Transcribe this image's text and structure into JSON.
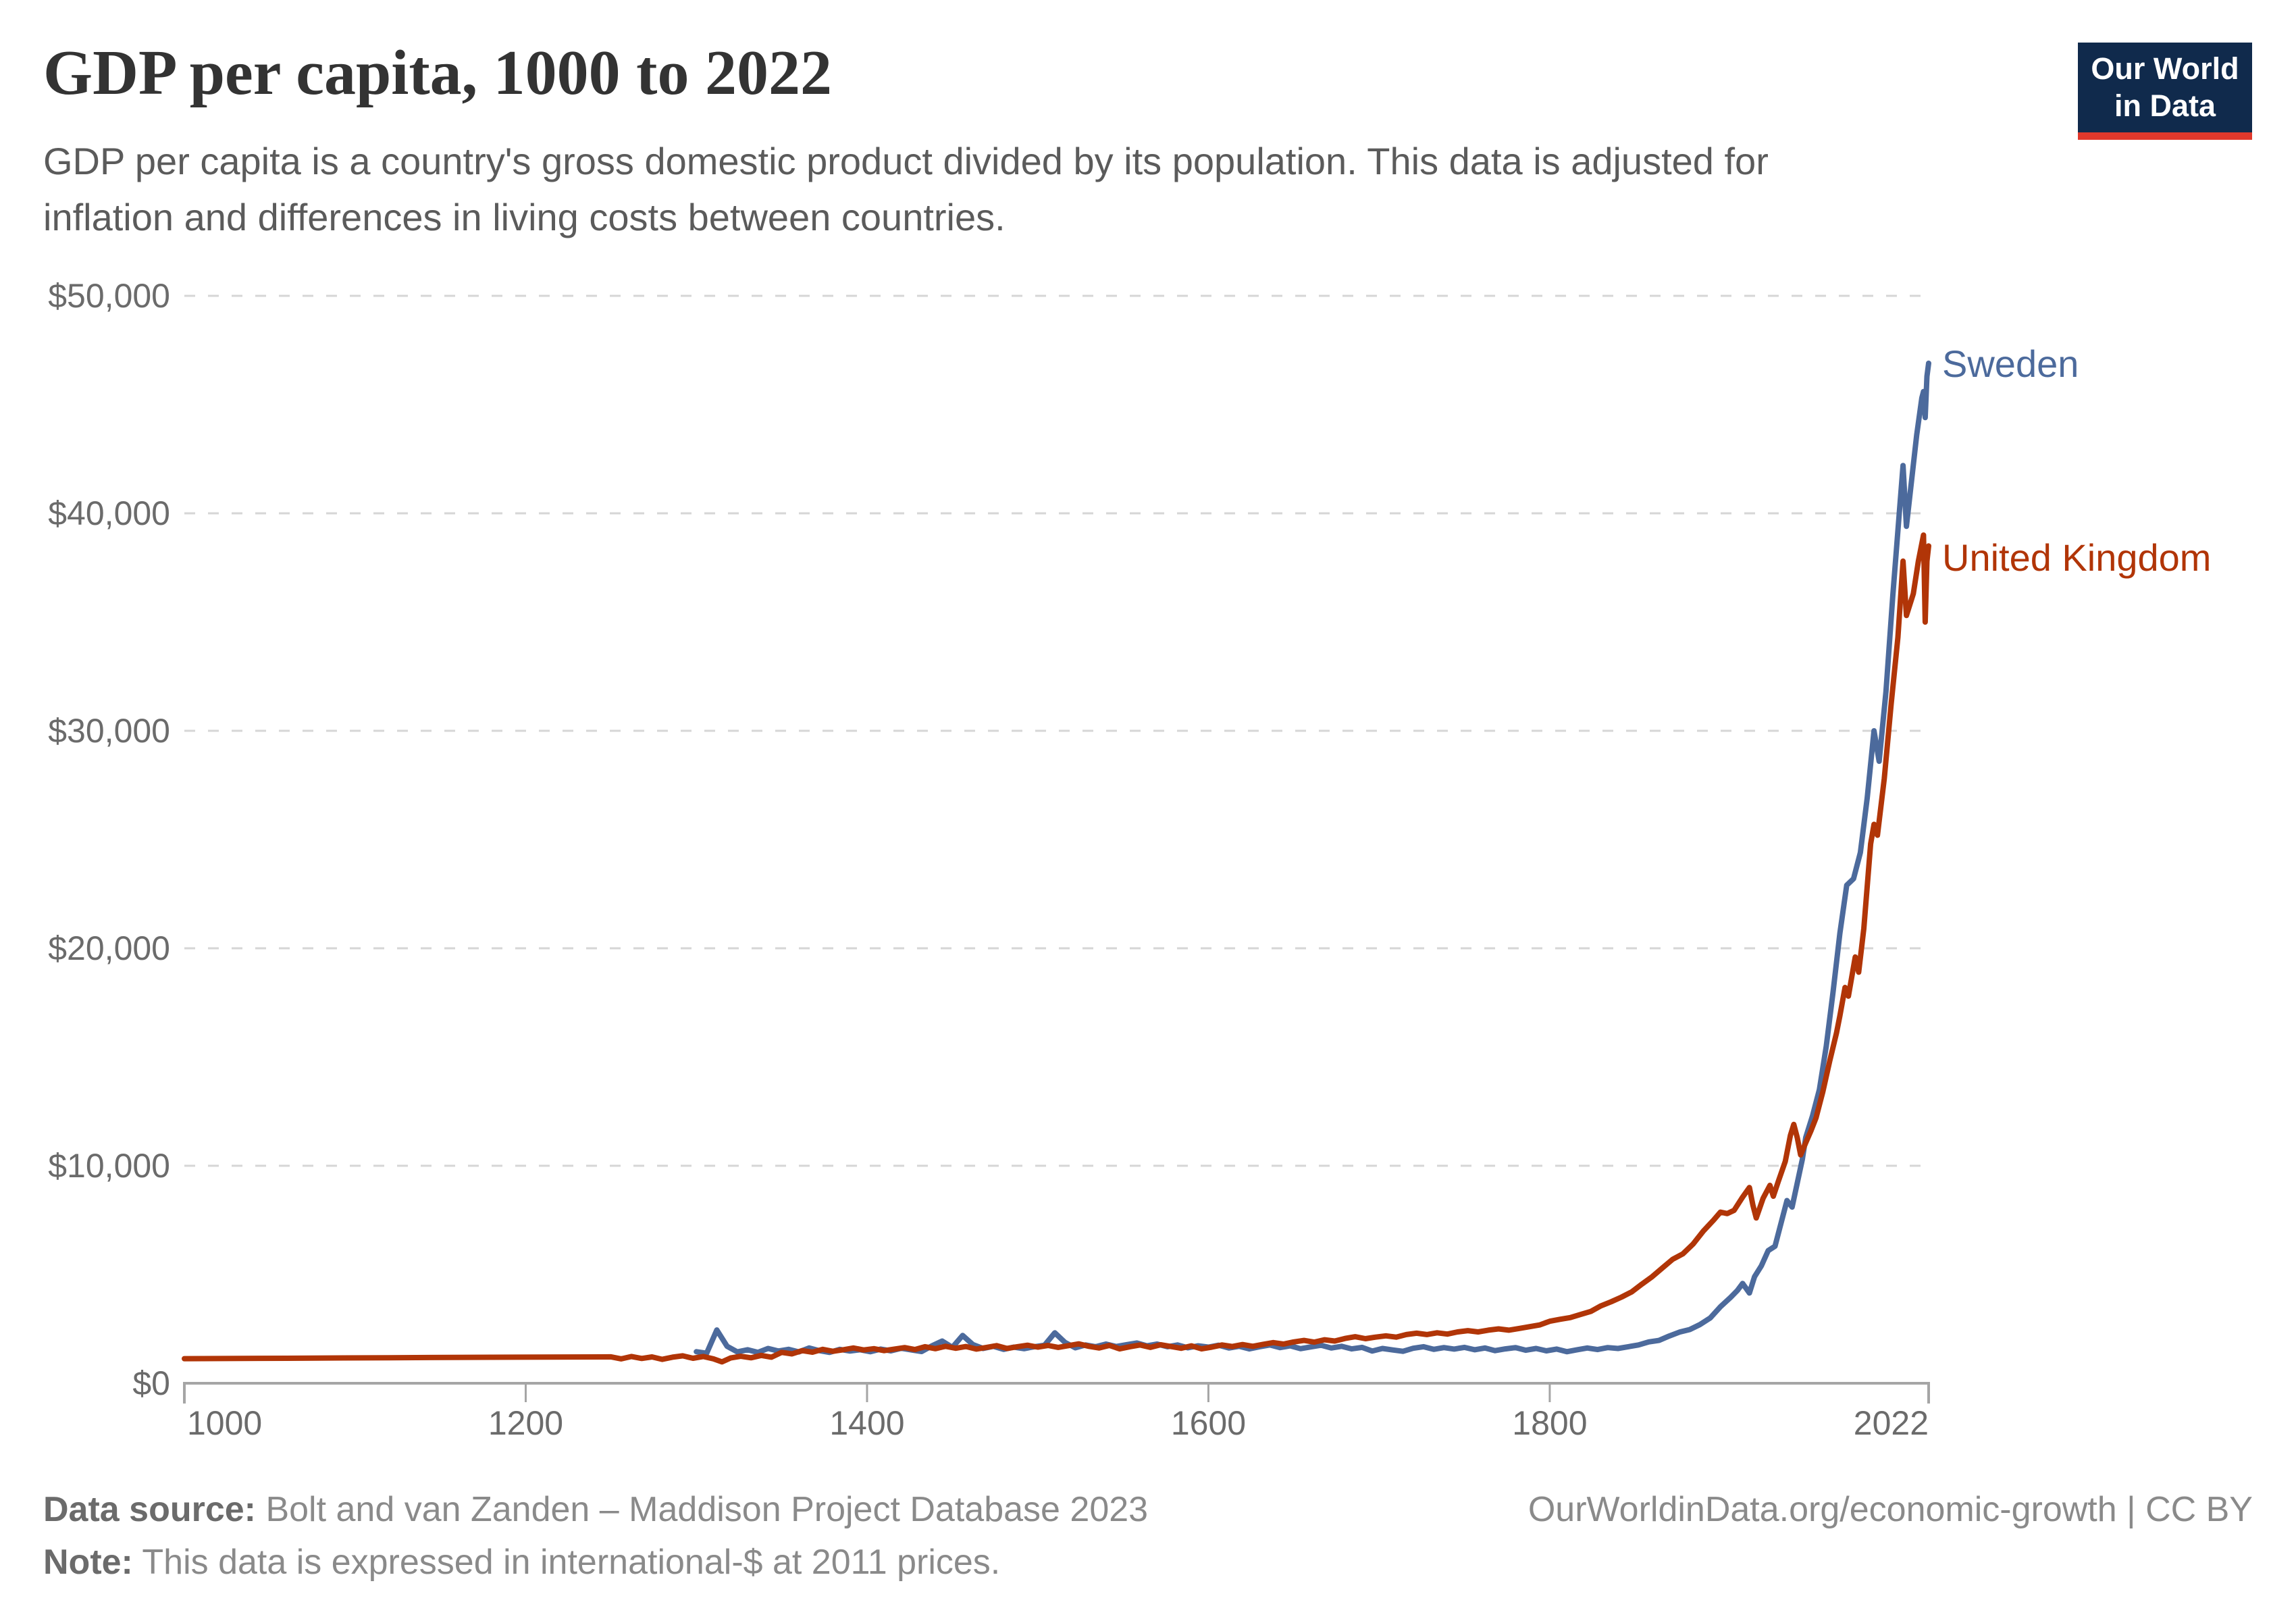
{
  "header": {
    "title": "GDP per capita, 1000 to 2022",
    "subtitle": "GDP per capita is a country's gross domestic product divided by its population. This data is adjusted for inflation and differences in living costs between countries."
  },
  "logo": {
    "line1": "Our World",
    "line2": "in Data",
    "bg_color": "#102A4C",
    "bar_color": "#E0382C"
  },
  "footer": {
    "data_source_label": "Data source:",
    "data_source_text": " Bolt and van Zanden – Maddison Project Database 2023",
    "note_label": "Note:",
    "note_text": " This data is expressed in international-$ at 2011 prices.",
    "credit": "OurWorldinData.org/economic-growth | CC BY"
  },
  "chart_data": {
    "type": "line",
    "title": "GDP per capita, 1000 to 2022",
    "xlabel": "",
    "ylabel": "",
    "xlim": [
      1000,
      2022
    ],
    "ylim": [
      0,
      50000
    ],
    "grid": "horizontal-dashed",
    "legend_position": "end-of-line-labels",
    "x_ticks": [
      {
        "value": 1000,
        "label": "1000"
      },
      {
        "value": 1200,
        "label": "1200"
      },
      {
        "value": 1400,
        "label": "1400"
      },
      {
        "value": 1600,
        "label": "1600"
      },
      {
        "value": 1800,
        "label": "1800"
      },
      {
        "value": 2022,
        "label": "2022"
      }
    ],
    "y_ticks": [
      {
        "value": 0,
        "label": "$0"
      },
      {
        "value": 10000,
        "label": "$10,000"
      },
      {
        "value": 20000,
        "label": "$20,000"
      },
      {
        "value": 30000,
        "label": "$30,000"
      },
      {
        "value": 40000,
        "label": "$40,000"
      },
      {
        "value": 50000,
        "label": "$50,000"
      }
    ],
    "colors": {
      "axis": "#a5a5a5",
      "gridline": "#d6d6d6",
      "tick_label": "#6b6b6b"
    },
    "series": [
      {
        "name": "Sweden",
        "color": "#4C6A9C",
        "points": [
          [
            1300,
            1450
          ],
          [
            1306,
            1380
          ],
          [
            1312,
            2450
          ],
          [
            1318,
            1700
          ],
          [
            1324,
            1440
          ],
          [
            1330,
            1540
          ],
          [
            1336,
            1420
          ],
          [
            1342,
            1600
          ],
          [
            1348,
            1480
          ],
          [
            1354,
            1560
          ],
          [
            1360,
            1440
          ],
          [
            1366,
            1620
          ],
          [
            1372,
            1500
          ],
          [
            1378,
            1420
          ],
          [
            1384,
            1560
          ],
          [
            1390,
            1480
          ],
          [
            1396,
            1540
          ],
          [
            1402,
            1450
          ],
          [
            1408,
            1570
          ],
          [
            1414,
            1490
          ],
          [
            1420,
            1610
          ],
          [
            1426,
            1530
          ],
          [
            1432,
            1460
          ],
          [
            1438,
            1720
          ],
          [
            1444,
            1940
          ],
          [
            1450,
            1650
          ],
          [
            1456,
            2200
          ],
          [
            1462,
            1780
          ],
          [
            1468,
            1600
          ],
          [
            1474,
            1700
          ],
          [
            1480,
            1560
          ],
          [
            1486,
            1660
          ],
          [
            1492,
            1590
          ],
          [
            1498,
            1680
          ],
          [
            1504,
            1750
          ],
          [
            1510,
            2320
          ],
          [
            1516,
            1880
          ],
          [
            1522,
            1630
          ],
          [
            1528,
            1760
          ],
          [
            1534,
            1680
          ],
          [
            1540,
            1800
          ],
          [
            1546,
            1690
          ],
          [
            1552,
            1770
          ],
          [
            1558,
            1850
          ],
          [
            1564,
            1720
          ],
          [
            1570,
            1800
          ],
          [
            1576,
            1680
          ],
          [
            1582,
            1760
          ],
          [
            1588,
            1630
          ],
          [
            1594,
            1720
          ],
          [
            1600,
            1660
          ],
          [
            1606,
            1750
          ],
          [
            1612,
            1620
          ],
          [
            1618,
            1700
          ],
          [
            1624,
            1580
          ],
          [
            1630,
            1680
          ],
          [
            1636,
            1760
          ],
          [
            1642,
            1640
          ],
          [
            1648,
            1720
          ],
          [
            1654,
            1590
          ],
          [
            1660,
            1670
          ],
          [
            1666,
            1750
          ],
          [
            1672,
            1620
          ],
          [
            1678,
            1700
          ],
          [
            1684,
            1580
          ],
          [
            1690,
            1650
          ],
          [
            1696,
            1480
          ],
          [
            1702,
            1600
          ],
          [
            1708,
            1530
          ],
          [
            1714,
            1470
          ],
          [
            1720,
            1610
          ],
          [
            1726,
            1680
          ],
          [
            1732,
            1560
          ],
          [
            1738,
            1640
          ],
          [
            1744,
            1570
          ],
          [
            1750,
            1650
          ],
          [
            1756,
            1540
          ],
          [
            1762,
            1620
          ],
          [
            1768,
            1500
          ],
          [
            1774,
            1580
          ],
          [
            1780,
            1640
          ],
          [
            1786,
            1520
          ],
          [
            1792,
            1600
          ],
          [
            1798,
            1490
          ],
          [
            1804,
            1570
          ],
          [
            1810,
            1450
          ],
          [
            1816,
            1540
          ],
          [
            1822,
            1620
          ],
          [
            1828,
            1550
          ],
          [
            1834,
            1640
          ],
          [
            1840,
            1600
          ],
          [
            1846,
            1680
          ],
          [
            1852,
            1760
          ],
          [
            1858,
            1900
          ],
          [
            1864,
            1970
          ],
          [
            1870,
            2170
          ],
          [
            1876,
            2350
          ],
          [
            1882,
            2470
          ],
          [
            1888,
            2700
          ],
          [
            1894,
            3000
          ],
          [
            1900,
            3520
          ],
          [
            1906,
            3950
          ],
          [
            1910,
            4270
          ],
          [
            1913,
            4590
          ],
          [
            1917,
            4150
          ],
          [
            1920,
            4900
          ],
          [
            1924,
            5400
          ],
          [
            1928,
            6100
          ],
          [
            1932,
            6300
          ],
          [
            1936,
            7500
          ],
          [
            1939,
            8400
          ],
          [
            1942,
            8100
          ],
          [
            1945,
            9200
          ],
          [
            1948,
            10300
          ],
          [
            1950,
            11300
          ],
          [
            1954,
            12300
          ],
          [
            1958,
            13500
          ],
          [
            1962,
            15500
          ],
          [
            1966,
            18000
          ],
          [
            1970,
            20700
          ],
          [
            1974,
            22900
          ],
          [
            1978,
            23200
          ],
          [
            1982,
            24400
          ],
          [
            1986,
            26900
          ],
          [
            1990,
            30000
          ],
          [
            1993,
            28600
          ],
          [
            1997,
            31800
          ],
          [
            2001,
            36200
          ],
          [
            2005,
            40200
          ],
          [
            2007,
            42200
          ],
          [
            2009,
            39400
          ],
          [
            2012,
            41500
          ],
          [
            2015,
            43600
          ],
          [
            2018,
            45300
          ],
          [
            2019,
            45600
          ],
          [
            2020,
            44400
          ],
          [
            2021,
            46300
          ],
          [
            2022,
            46900
          ]
        ]
      },
      {
        "name": "United Kingdom",
        "color": "#B13507",
        "points": [
          [
            1000,
            1130
          ],
          [
            1060,
            1150
          ],
          [
            1120,
            1175
          ],
          [
            1180,
            1195
          ],
          [
            1250,
            1215
          ],
          [
            1256,
            1120
          ],
          [
            1262,
            1230
          ],
          [
            1268,
            1140
          ],
          [
            1274,
            1210
          ],
          [
            1280,
            1100
          ],
          [
            1286,
            1200
          ],
          [
            1292,
            1260
          ],
          [
            1298,
            1150
          ],
          [
            1304,
            1230
          ],
          [
            1310,
            1120
          ],
          [
            1315,
            980
          ],
          [
            1320,
            1160
          ],
          [
            1326,
            1240
          ],
          [
            1332,
            1170
          ],
          [
            1338,
            1280
          ],
          [
            1344,
            1200
          ],
          [
            1350,
            1420
          ],
          [
            1356,
            1350
          ],
          [
            1362,
            1500
          ],
          [
            1368,
            1430
          ],
          [
            1374,
            1560
          ],
          [
            1380,
            1470
          ],
          [
            1386,
            1540
          ],
          [
            1392,
            1620
          ],
          [
            1398,
            1530
          ],
          [
            1404,
            1590
          ],
          [
            1410,
            1500
          ],
          [
            1416,
            1570
          ],
          [
            1422,
            1640
          ],
          [
            1428,
            1550
          ],
          [
            1434,
            1680
          ],
          [
            1440,
            1590
          ],
          [
            1446,
            1700
          ],
          [
            1452,
            1610
          ],
          [
            1458,
            1690
          ],
          [
            1464,
            1570
          ],
          [
            1470,
            1650
          ],
          [
            1476,
            1730
          ],
          [
            1482,
            1600
          ],
          [
            1488,
            1680
          ],
          [
            1494,
            1750
          ],
          [
            1500,
            1660
          ],
          [
            1506,
            1740
          ],
          [
            1512,
            1650
          ],
          [
            1518,
            1730
          ],
          [
            1524,
            1810
          ],
          [
            1530,
            1700
          ],
          [
            1536,
            1620
          ],
          [
            1542,
            1740
          ],
          [
            1548,
            1580
          ],
          [
            1554,
            1680
          ],
          [
            1560,
            1760
          ],
          [
            1566,
            1650
          ],
          [
            1572,
            1770
          ],
          [
            1578,
            1690
          ],
          [
            1584,
            1610
          ],
          [
            1590,
            1720
          ],
          [
            1596,
            1580
          ],
          [
            1602,
            1660
          ],
          [
            1608,
            1760
          ],
          [
            1614,
            1690
          ],
          [
            1620,
            1780
          ],
          [
            1626,
            1700
          ],
          [
            1632,
            1790
          ],
          [
            1638,
            1870
          ],
          [
            1644,
            1800
          ],
          [
            1650,
            1900
          ],
          [
            1656,
            1970
          ],
          [
            1662,
            1890
          ],
          [
            1668,
            2000
          ],
          [
            1674,
            1940
          ],
          [
            1680,
            2060
          ],
          [
            1686,
            2140
          ],
          [
            1692,
            2050
          ],
          [
            1698,
            2120
          ],
          [
            1704,
            2180
          ],
          [
            1710,
            2120
          ],
          [
            1716,
            2240
          ],
          [
            1722,
            2300
          ],
          [
            1728,
            2240
          ],
          [
            1734,
            2320
          ],
          [
            1740,
            2260
          ],
          [
            1746,
            2360
          ],
          [
            1752,
            2420
          ],
          [
            1758,
            2360
          ],
          [
            1764,
            2440
          ],
          [
            1770,
            2500
          ],
          [
            1776,
            2440
          ],
          [
            1782,
            2520
          ],
          [
            1788,
            2600
          ],
          [
            1794,
            2680
          ],
          [
            1800,
            2850
          ],
          [
            1806,
            2940
          ],
          [
            1812,
            3020
          ],
          [
            1818,
            3160
          ],
          [
            1824,
            3300
          ],
          [
            1830,
            3560
          ],
          [
            1836,
            3750
          ],
          [
            1842,
            3960
          ],
          [
            1848,
            4200
          ],
          [
            1854,
            4560
          ],
          [
            1860,
            4900
          ],
          [
            1866,
            5300
          ],
          [
            1872,
            5700
          ],
          [
            1878,
            5950
          ],
          [
            1884,
            6400
          ],
          [
            1890,
            7000
          ],
          [
            1896,
            7500
          ],
          [
            1900,
            7870
          ],
          [
            1904,
            7800
          ],
          [
            1908,
            7950
          ],
          [
            1913,
            8560
          ],
          [
            1917,
            9000
          ],
          [
            1919,
            8200
          ],
          [
            1921,
            7600
          ],
          [
            1925,
            8500
          ],
          [
            1929,
            9100
          ],
          [
            1931,
            8600
          ],
          [
            1934,
            9300
          ],
          [
            1938,
            10200
          ],
          [
            1941,
            11400
          ],
          [
            1943,
            11900
          ],
          [
            1945,
            11300
          ],
          [
            1947,
            10500
          ],
          [
            1950,
            11060
          ],
          [
            1953,
            11600
          ],
          [
            1956,
            12200
          ],
          [
            1960,
            13400
          ],
          [
            1964,
            14800
          ],
          [
            1968,
            16100
          ],
          [
            1970,
            16900
          ],
          [
            1973,
            18200
          ],
          [
            1975,
            17800
          ],
          [
            1979,
            19600
          ],
          [
            1981,
            18900
          ],
          [
            1984,
            20900
          ],
          [
            1988,
            24800
          ],
          [
            1990,
            25700
          ],
          [
            1992,
            25200
          ],
          [
            1996,
            27800
          ],
          [
            2000,
            31200
          ],
          [
            2004,
            34300
          ],
          [
            2007,
            37800
          ],
          [
            2009,
            35300
          ],
          [
            2013,
            36300
          ],
          [
            2016,
            37800
          ],
          [
            2019,
            39000
          ],
          [
            2020,
            35000
          ],
          [
            2021,
            37800
          ],
          [
            2022,
            38500
          ]
        ]
      }
    ]
  }
}
